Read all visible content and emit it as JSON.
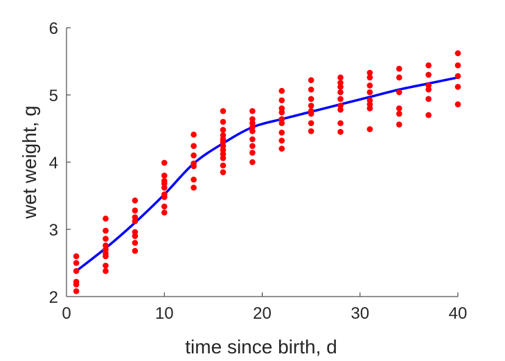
{
  "chart_data": {
    "type": "scatter",
    "title": "",
    "xlabel": "time since birth, d",
    "ylabel": "wet weight, g",
    "xlim": [
      0,
      40
    ],
    "ylim": [
      2,
      6
    ],
    "xticks": [
      0,
      10,
      20,
      30,
      40
    ],
    "yticks": [
      2,
      3,
      4,
      5,
      6
    ],
    "grid": false,
    "legend": "none",
    "colors": {
      "points": "#ff0000",
      "fit": "#0000ff",
      "axis": "#262626"
    },
    "points": [
      [
        1,
        2.08
      ],
      [
        1,
        2.18
      ],
      [
        1,
        2.22
      ],
      [
        1,
        2.38
      ],
      [
        1,
        2.5
      ],
      [
        1,
        2.6
      ],
      [
        4,
        2.38
      ],
      [
        4,
        2.46
      ],
      [
        4,
        2.6
      ],
      [
        4,
        2.64
      ],
      [
        4,
        2.7
      ],
      [
        4,
        2.76
      ],
      [
        4,
        2.86
      ],
      [
        4,
        2.98
      ],
      [
        4,
        3.16
      ],
      [
        7,
        2.68
      ],
      [
        7,
        2.8
      ],
      [
        7,
        2.9
      ],
      [
        7,
        2.96
      ],
      [
        7,
        3.12
      ],
      [
        7,
        3.18
      ],
      [
        7,
        3.28
      ],
      [
        7,
        3.43
      ],
      [
        10,
        3.25
      ],
      [
        10,
        3.34
      ],
      [
        10,
        3.48
      ],
      [
        10,
        3.52
      ],
      [
        10,
        3.62
      ],
      [
        10,
        3.68
      ],
      [
        10,
        3.72
      ],
      [
        10,
        3.8
      ],
      [
        10,
        3.99
      ],
      [
        13,
        3.62
      ],
      [
        13,
        3.74
      ],
      [
        13,
        3.94
      ],
      [
        13,
        3.98
      ],
      [
        13,
        4.1
      ],
      [
        13,
        4.24
      ],
      [
        13,
        4.41
      ],
      [
        16,
        3.85
      ],
      [
        16,
        3.95
      ],
      [
        16,
        4.06
      ],
      [
        16,
        4.12
      ],
      [
        16,
        4.18
      ],
      [
        16,
        4.24
      ],
      [
        16,
        4.3
      ],
      [
        16,
        4.34
      ],
      [
        16,
        4.4
      ],
      [
        16,
        4.48
      ],
      [
        16,
        4.6
      ],
      [
        16,
        4.76
      ],
      [
        19,
        4.0
      ],
      [
        19,
        4.14
      ],
      [
        19,
        4.24
      ],
      [
        19,
        4.34
      ],
      [
        19,
        4.46
      ],
      [
        19,
        4.52
      ],
      [
        19,
        4.58
      ],
      [
        19,
        4.64
      ],
      [
        19,
        4.76
      ],
      [
        22,
        4.2
      ],
      [
        22,
        4.32
      ],
      [
        22,
        4.44
      ],
      [
        22,
        4.58
      ],
      [
        22,
        4.64
      ],
      [
        22,
        4.74
      ],
      [
        22,
        4.8
      ],
      [
        22,
        4.92
      ],
      [
        22,
        5.06
      ],
      [
        25,
        4.46
      ],
      [
        25,
        4.58
      ],
      [
        25,
        4.72
      ],
      [
        25,
        4.76
      ],
      [
        25,
        4.84
      ],
      [
        25,
        4.94
      ],
      [
        25,
        5.08
      ],
      [
        25,
        5.22
      ],
      [
        28,
        4.45
      ],
      [
        28,
        4.58
      ],
      [
        28,
        4.78
      ],
      [
        28,
        4.84
      ],
      [
        28,
        4.94
      ],
      [
        28,
        5.04
      ],
      [
        28,
        5.12
      ],
      [
        28,
        5.18
      ],
      [
        28,
        5.26
      ],
      [
        31,
        4.49
      ],
      [
        31,
        4.8
      ],
      [
        31,
        4.86
      ],
      [
        31,
        4.92
      ],
      [
        31,
        5.04
      ],
      [
        31,
        5.14
      ],
      [
        31,
        5.26
      ],
      [
        31,
        5.33
      ],
      [
        34,
        4.56
      ],
      [
        34,
        4.72
      ],
      [
        34,
        4.8
      ],
      [
        34,
        5.04
      ],
      [
        34,
        5.26
      ],
      [
        34,
        5.39
      ],
      [
        37,
        4.7
      ],
      [
        37,
        4.94
      ],
      [
        37,
        5.08
      ],
      [
        37,
        5.14
      ],
      [
        37,
        5.3
      ],
      [
        37,
        5.44
      ],
      [
        40,
        4.86
      ],
      [
        40,
        5.12
      ],
      [
        40,
        5.28
      ],
      [
        40,
        5.44
      ],
      [
        40,
        5.62
      ]
    ],
    "fit_line": {
      "x": [
        1,
        4,
        7,
        10,
        13,
        16,
        19,
        22,
        25,
        28,
        31,
        34,
        37,
        40
      ],
      "y": [
        2.38,
        2.72,
        3.1,
        3.52,
        3.98,
        4.28,
        4.52,
        4.64,
        4.75,
        4.86,
        4.97,
        5.08,
        5.17,
        5.26
      ]
    }
  }
}
